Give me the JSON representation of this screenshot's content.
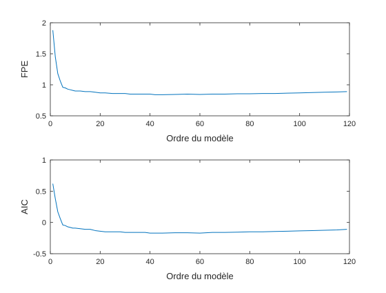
{
  "figure": {
    "background": "#ffffff",
    "line_color": "#0072BD",
    "axis_color": "#262626"
  },
  "chart_data": [
    {
      "type": "line",
      "title": "",
      "xlabel": "Ordre du modèle",
      "ylabel": "FPE",
      "xlim": [
        0,
        120
      ],
      "ylim": [
        0.5,
        2
      ],
      "xticks": [
        0,
        20,
        40,
        60,
        80,
        100,
        120
      ],
      "xtick_labels": [
        "0",
        "20",
        "40",
        "60",
        "80",
        "100",
        "120"
      ],
      "yticks": [
        0.5,
        1,
        1.5,
        2
      ],
      "ytick_labels": [
        "0.5",
        "1",
        "1.5",
        "2"
      ],
      "grid": false,
      "series": [
        {
          "x": [
            1,
            2,
            3,
            4,
            5,
            6,
            7,
            8,
            9,
            10,
            12,
            14,
            16,
            18,
            20,
            22,
            25,
            28,
            30,
            32,
            35,
            38,
            40,
            42,
            45,
            50,
            55,
            60,
            65,
            70,
            75,
            80,
            85,
            90,
            95,
            100,
            105,
            110,
            115,
            119
          ],
          "y": [
            1.88,
            1.45,
            1.18,
            1.06,
            0.96,
            0.95,
            0.93,
            0.92,
            0.91,
            0.9,
            0.9,
            0.89,
            0.89,
            0.88,
            0.87,
            0.87,
            0.86,
            0.86,
            0.86,
            0.85,
            0.85,
            0.85,
            0.85,
            0.84,
            0.84,
            0.845,
            0.85,
            0.845,
            0.85,
            0.85,
            0.855,
            0.855,
            0.86,
            0.86,
            0.865,
            0.87,
            0.875,
            0.88,
            0.885,
            0.89
          ]
        }
      ]
    },
    {
      "type": "line",
      "title": "",
      "xlabel": "Ordre du modèle",
      "ylabel": "AIC",
      "xlim": [
        0,
        120
      ],
      "ylim": [
        -0.5,
        1
      ],
      "xticks": [
        0,
        20,
        40,
        60,
        80,
        100,
        120
      ],
      "xtick_labels": [
        "0",
        "20",
        "40",
        "60",
        "80",
        "100",
        "120"
      ],
      "yticks": [
        -0.5,
        0,
        0.5,
        1
      ],
      "ytick_labels": [
        "-0.5",
        "0",
        "0.5",
        "1"
      ],
      "grid": false,
      "series": [
        {
          "x": [
            1,
            2,
            3,
            4,
            5,
            6,
            7,
            8,
            9,
            10,
            12,
            14,
            16,
            18,
            20,
            22,
            25,
            28,
            30,
            32,
            35,
            38,
            40,
            42,
            45,
            50,
            55,
            60,
            65,
            70,
            75,
            80,
            85,
            90,
            95,
            100,
            105,
            110,
            115,
            119
          ],
          "y": [
            0.62,
            0.38,
            0.17,
            0.06,
            -0.04,
            -0.05,
            -0.07,
            -0.08,
            -0.09,
            -0.09,
            -0.1,
            -0.11,
            -0.11,
            -0.13,
            -0.14,
            -0.15,
            -0.15,
            -0.15,
            -0.16,
            -0.16,
            -0.16,
            -0.16,
            -0.17,
            -0.17,
            -0.17,
            -0.165,
            -0.165,
            -0.17,
            -0.16,
            -0.16,
            -0.155,
            -0.15,
            -0.15,
            -0.145,
            -0.14,
            -0.135,
            -0.13,
            -0.125,
            -0.12,
            -0.11
          ]
        }
      ]
    }
  ]
}
